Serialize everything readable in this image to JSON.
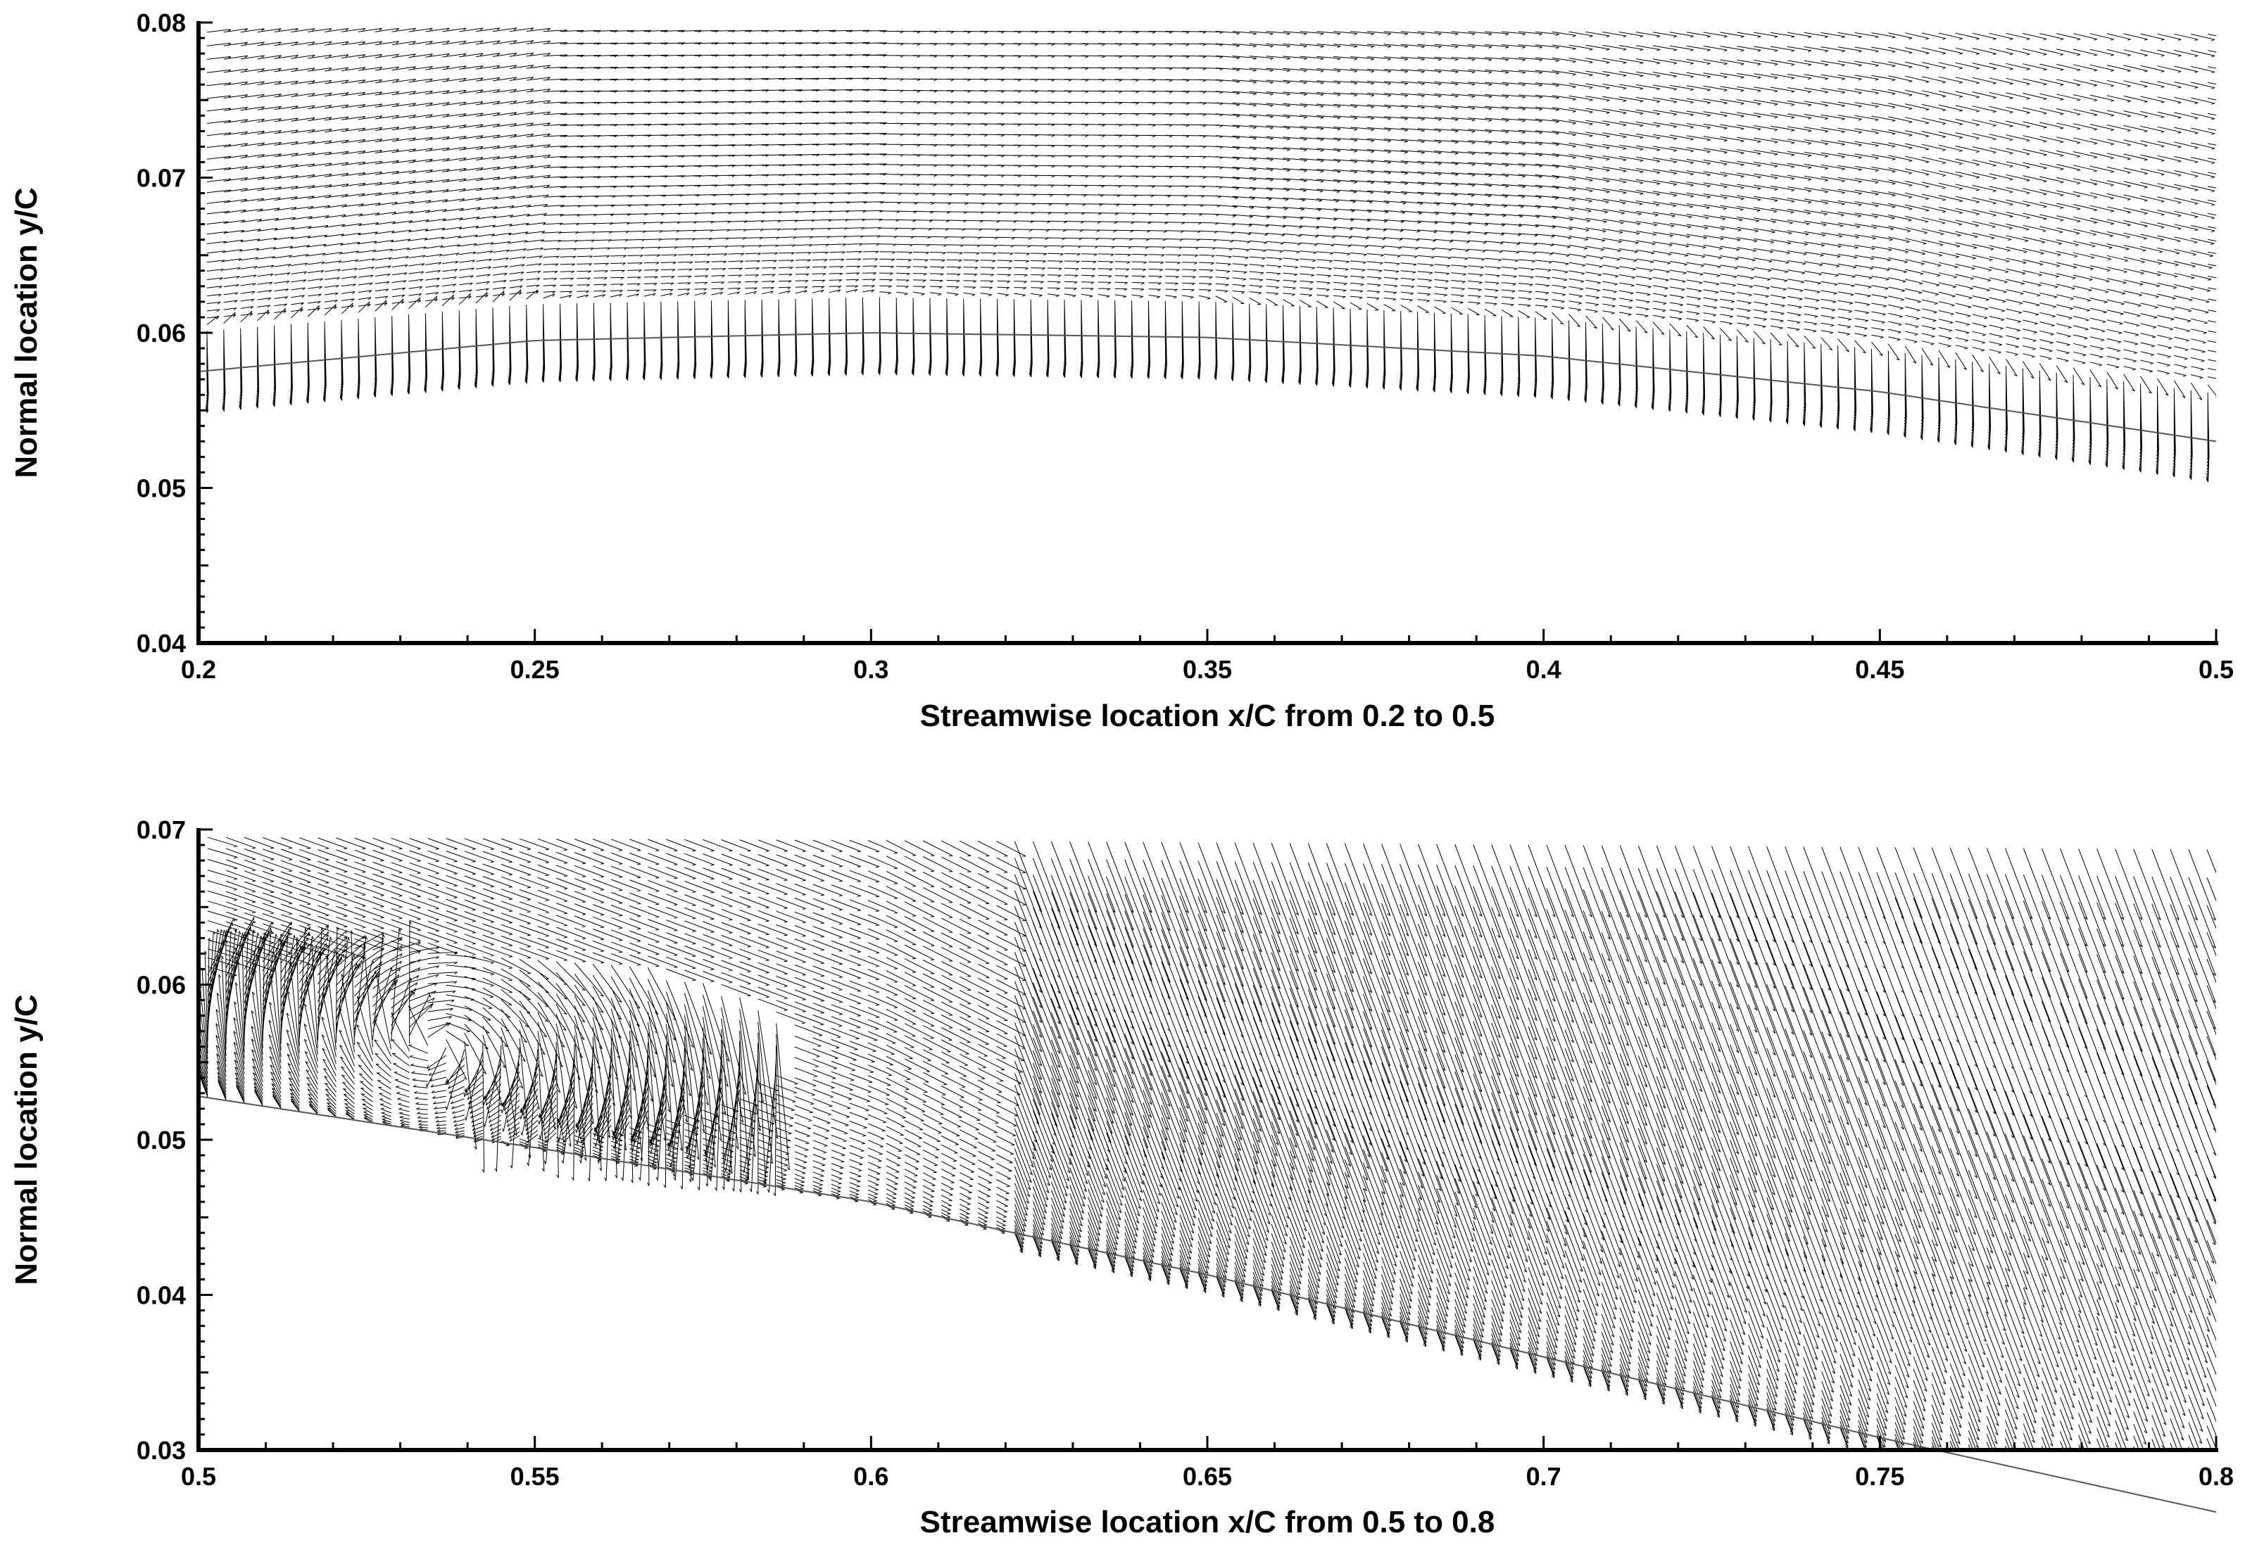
{
  "chart_data": [
    {
      "type": "vector-field",
      "xlabel": "Streamwise location x/C from 0.2 to 0.5",
      "ylabel": "Normal location y/C",
      "xlim": [
        0.2,
        0.5
      ],
      "ylim": [
        0.04,
        0.08
      ],
      "xticks": [
        "0.2",
        "0.25",
        "0.3",
        "0.35",
        "0.4",
        "0.45",
        "0.5"
      ],
      "yticks": [
        "0.04",
        "0.05",
        "0.06",
        "0.07",
        "0.08"
      ],
      "wall": {
        "x": [
          0.2,
          0.25,
          0.3,
          0.35,
          0.4,
          0.45,
          0.5
        ],
        "y": [
          0.0575,
          0.0595,
          0.06,
          0.0597,
          0.0585,
          0.0562,
          0.053
        ]
      }
    },
    {
      "type": "vector-field",
      "xlabel": "Streamwise location x/C from 0.5 to 0.8",
      "ylabel": "Normal location y/C",
      "xlim": [
        0.5,
        0.8
      ],
      "ylim": [
        0.03,
        0.07
      ],
      "xticks": [
        "0.5",
        "0.55",
        "0.6",
        "0.65",
        "0.7",
        "0.75",
        "0.8"
      ],
      "yticks": [
        "0.03",
        "0.04",
        "0.05",
        "0.06",
        "0.07"
      ],
      "wall": {
        "x": [
          0.5,
          0.55,
          0.6,
          0.65,
          0.7,
          0.75,
          0.8
        ],
        "y": [
          0.0528,
          0.0495,
          0.046,
          0.0413,
          0.036,
          0.0308,
          0.026
        ]
      }
    }
  ]
}
